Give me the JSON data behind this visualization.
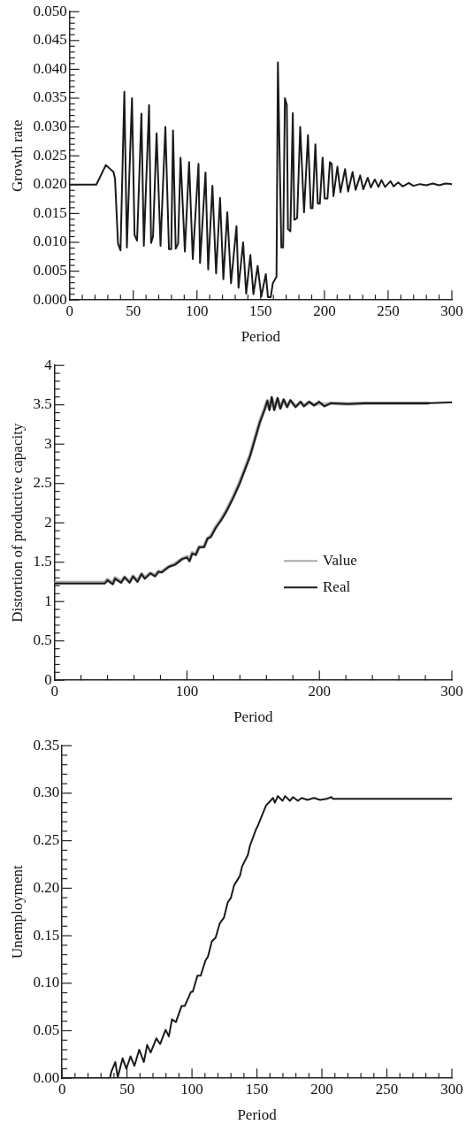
{
  "chart_data": [
    {
      "type": "line",
      "xlabel": "Period",
      "ylabel": "Growth rate",
      "marker": "none",
      "xlim": [
        0,
        300
      ],
      "ylim": [
        0,
        0.05
      ],
      "xticks": [
        0,
        {
          "value": 10,
          "label": null
        },
        {
          "value": 20,
          "label": null
        },
        {
          "value": 30,
          "label": null
        },
        {
          "value": 40,
          "label": null
        },
        50,
        {
          "value": 60,
          "label": null
        },
        {
          "value": 70,
          "label": null
        },
        {
          "value": 80,
          "label": null
        },
        {
          "value": 90,
          "label": null
        },
        100,
        {
          "value": 110,
          "label": null
        },
        {
          "value": 120,
          "label": null
        },
        {
          "value": 130,
          "label": null
        },
        {
          "value": 140,
          "label": null
        },
        150,
        {
          "value": 160,
          "label": null
        },
        {
          "value": 170,
          "label": null
        },
        {
          "value": 180,
          "label": null
        },
        {
          "value": 190,
          "label": null
        },
        200,
        {
          "value": 210,
          "label": null
        },
        {
          "value": 220,
          "label": null
        },
        {
          "value": 230,
          "label": null
        },
        {
          "value": 240,
          "label": null
        },
        250,
        {
          "value": 260,
          "label": null
        },
        {
          "value": 270,
          "label": null
        },
        {
          "value": 280,
          "label": null
        },
        {
          "value": 290,
          "label": null
        },
        300
      ],
      "yticks": [
        {
          "value": 0,
          "label": "0.000"
        },
        {
          "value": 0.001,
          "label": null
        },
        {
          "value": 0.002,
          "label": null
        },
        {
          "value": 0.003,
          "label": null
        },
        {
          "value": 0.004,
          "label": null
        },
        {
          "value": 0.005,
          "label": "0.005"
        },
        {
          "value": 0.006,
          "label": null
        },
        {
          "value": 0.007,
          "label": null
        },
        {
          "value": 0.008,
          "label": null
        },
        {
          "value": 0.009,
          "label": null
        },
        {
          "value": 0.01,
          "label": "0.010"
        },
        {
          "value": 0.011,
          "label": null
        },
        {
          "value": 0.012,
          "label": null
        },
        {
          "value": 0.013,
          "label": null
        },
        {
          "value": 0.014,
          "label": null
        },
        {
          "value": 0.015,
          "label": "0.015"
        },
        {
          "value": 0.016,
          "label": null
        },
        {
          "value": 0.017,
          "label": null
        },
        {
          "value": 0.018,
          "label": null
        },
        {
          "value": 0.019,
          "label": null
        },
        {
          "value": 0.02,
          "label": "0.020"
        },
        {
          "value": 0.021,
          "label": null
        },
        {
          "value": 0.022,
          "label": null
        },
        {
          "value": 0.023,
          "label": null
        },
        {
          "value": 0.024,
          "label": null
        },
        {
          "value": 0.025,
          "label": "0.025"
        },
        {
          "value": 0.026,
          "label": null
        },
        {
          "value": 0.027,
          "label": null
        },
        {
          "value": 0.028,
          "label": null
        },
        {
          "value": 0.029,
          "label": null
        },
        {
          "value": 0.03,
          "label": "0.030"
        },
        {
          "value": 0.031,
          "label": null
        },
        {
          "value": 0.032,
          "label": null
        },
        {
          "value": 0.033,
          "label": null
        },
        {
          "value": 0.034,
          "label": null
        },
        {
          "value": 0.035,
          "label": "0.035"
        },
        {
          "value": 0.036,
          "label": null
        },
        {
          "value": 0.037,
          "label": null
        },
        {
          "value": 0.038,
          "label": null
        },
        {
          "value": 0.039,
          "label": null
        },
        {
          "value": 0.04,
          "label": "0.040"
        },
        {
          "value": 0.041,
          "label": null
        },
        {
          "value": 0.042,
          "label": null
        },
        {
          "value": 0.043,
          "label": null
        },
        {
          "value": 0.044,
          "label": null
        },
        {
          "value": 0.045,
          "label": "0.045"
        },
        {
          "value": 0.046,
          "label": null
        },
        {
          "value": 0.047,
          "label": null
        },
        {
          "value": 0.048,
          "label": null
        },
        {
          "value": 0.049,
          "label": null
        },
        {
          "value": 0.05,
          "label": "0.050"
        }
      ],
      "series": [
        {
          "color": "#1a1a1a",
          "x": [
            0,
            21,
            28.5,
            34.5,
            35.7,
            38,
            40,
            43,
            45,
            49,
            51,
            53,
            56.4,
            58.3,
            62.4,
            64,
            65.5,
            68.3,
            71.4,
            75.2,
            78,
            79.8,
            81.2,
            83.3,
            85.2,
            87.1,
            90.5,
            93.8,
            96.7,
            101.2,
            102.4,
            106.7,
            108.8,
            112.1,
            115,
            118.1,
            120.7,
            123.8,
            126.7,
            131,
            132.6,
            136.2,
            138.6,
            141.9,
            144.3,
            147.6,
            150.5,
            154,
            155.7,
            157.9,
            159.5,
            162.4,
            163.5,
            166.2,
            167.6,
            169,
            170.5,
            171.4,
            173.3,
            175.2,
            176.4,
            178.6,
            181,
            184,
            187.1,
            189.3,
            190.7,
            192.9,
            194.8,
            196.4,
            198.6,
            200.2,
            202.4,
            204.3,
            205.7,
            207.1,
            210.2,
            212.6,
            216.2,
            218.6,
            222.1,
            224.5,
            228.1,
            230.5,
            234,
            236.4,
            239.5,
            242.4,
            244.8,
            247.6,
            251.9,
            254.3,
            257.9,
            261.4,
            266.2,
            269.8,
            275,
            280,
            285,
            290,
            295,
            300
          ],
          "values": [
            0.02,
            0.02,
            0.0234,
            0.0222,
            0.021,
            0.0098,
            0.0086,
            0.0361,
            0.0091,
            0.035,
            0.0113,
            0.0103,
            0.0323,
            0.0094,
            0.0338,
            0.0099,
            0.011,
            0.0289,
            0.0094,
            0.03,
            0.0088,
            0.0088,
            0.0294,
            0.0089,
            0.0098,
            0.0247,
            0.0084,
            0.0239,
            0.0071,
            0.0236,
            0.0064,
            0.0221,
            0.0053,
            0.0198,
            0.0046,
            0.0177,
            0.0036,
            0.0152,
            0.0029,
            0.0128,
            0.0021,
            0.01,
            0.0011,
            0.0078,
            0.001,
            0.0059,
            0.0006,
            0.0045,
            0.0005,
            0.0005,
            0.0029,
            0.004,
            0.0412,
            0.0091,
            0.0091,
            0.035,
            0.0338,
            0.0123,
            0.0119,
            0.0324,
            0.0139,
            0.0142,
            0.03,
            0.0152,
            0.0286,
            0.0159,
            0.0159,
            0.027,
            0.0167,
            0.0167,
            0.0247,
            0.0176,
            0.0176,
            0.0239,
            0.0236,
            0.018,
            0.0231,
            0.0187,
            0.0227,
            0.0188,
            0.0222,
            0.0191,
            0.0216,
            0.0192,
            0.0212,
            0.0195,
            0.0209,
            0.0196,
            0.0208,
            0.0196,
            0.0206,
            0.0197,
            0.0204,
            0.0197,
            0.0203,
            0.0198,
            0.0201,
            0.0199,
            0.0202,
            0.0199,
            0.0202,
            0.0201
          ]
        }
      ]
    },
    {
      "type": "line",
      "xlabel": "Period",
      "ylabel": "Distortion of productive capacity",
      "marker": "none",
      "legend": "bottom right",
      "xlim": [
        0,
        300
      ],
      "ylim": [
        0,
        4
      ],
      "xticks": [
        0,
        {
          "value": 20,
          "label": null
        },
        {
          "value": 40,
          "label": null
        },
        {
          "value": 60,
          "label": null
        },
        {
          "value": 80,
          "label": null
        },
        100,
        {
          "value": 120,
          "label": null
        },
        {
          "value": 140,
          "label": null
        },
        {
          "value": 160,
          "label": null
        },
        {
          "value": 180,
          "label": null
        },
        200,
        {
          "value": 220,
          "label": null
        },
        {
          "value": 240,
          "label": null
        },
        {
          "value": 260,
          "label": null
        },
        {
          "value": 280,
          "label": null
        },
        300
      ],
      "yticks": [
        0,
        {
          "value": 0.1,
          "label": null
        },
        {
          "value": 0.2,
          "label": null
        },
        {
          "value": 0.3,
          "label": null
        },
        {
          "value": 0.4,
          "label": null
        },
        0.5,
        {
          "value": 0.6,
          "label": null
        },
        {
          "value": 0.7,
          "label": null
        },
        {
          "value": 0.8,
          "label": null
        },
        {
          "value": 0.9,
          "label": null
        },
        1,
        {
          "value": 1.1,
          "label": null
        },
        {
          "value": 1.2,
          "label": null
        },
        {
          "value": 1.3,
          "label": null
        },
        {
          "value": 1.4,
          "label": null
        },
        1.5,
        {
          "value": 1.6,
          "label": null
        },
        {
          "value": 1.7,
          "label": null
        },
        {
          "value": 1.8,
          "label": null
        },
        {
          "value": 1.9,
          "label": null
        },
        2,
        {
          "value": 2.1,
          "label": null
        },
        {
          "value": 2.2,
          "label": null
        },
        {
          "value": 2.3,
          "label": null
        },
        {
          "value": 2.4,
          "label": null
        },
        2.5,
        {
          "value": 2.6,
          "label": null
        },
        {
          "value": 2.7,
          "label": null
        },
        {
          "value": 2.8,
          "label": null
        },
        {
          "value": 2.9,
          "label": null
        },
        3,
        {
          "value": 3.1,
          "label": null
        },
        {
          "value": 3.2,
          "label": null
        },
        {
          "value": 3.3,
          "label": null
        },
        {
          "value": 3.4,
          "label": null
        },
        3.5,
        {
          "value": 3.6,
          "label": null
        },
        {
          "value": 3.7,
          "label": null
        },
        {
          "value": 3.8,
          "label": null
        },
        {
          "value": 3.9,
          "label": null
        },
        4
      ],
      "series": [
        {
          "name": "Value",
          "color": "#aaaaaa",
          "x": [
            0,
            38,
            40,
            44,
            45.7,
            50.3,
            52.9,
            56.7,
            59.3,
            62.6,
            65.7,
            68.2,
            72.3,
            75.9,
            78.5,
            81,
            86.1,
            91.2,
            96.3,
            100,
            101.9,
            104,
            106.6,
            109.1,
            112.9,
            115.5,
            118,
            121.9,
            125.7,
            129.6,
            134.7,
            139.8,
            143.6,
            147.5,
            151.3,
            155.1,
            158.9,
            160.7,
            162.3,
            164,
            165.9,
            168.4,
            170.5,
            173,
            175.6,
            178.1,
            182,
            185.8,
            188.3,
            192.2,
            196,
            199.8,
            203.7,
            208.8,
            221.6,
            234.3,
            259.9,
            282
          ],
          "values": [
            1.24,
            1.24,
            1.28,
            1.23,
            1.3,
            1.25,
            1.31,
            1.25,
            1.32,
            1.26,
            1.35,
            1.3,
            1.36,
            1.33,
            1.38,
            1.38,
            1.44,
            1.48,
            1.54,
            1.57,
            1.53,
            1.62,
            1.6,
            1.69,
            1.7,
            1.8,
            1.83,
            1.95,
            2.04,
            2.15,
            2.32,
            2.51,
            2.68,
            2.85,
            3.07,
            3.29,
            3.46,
            3.55,
            3.45,
            3.58,
            3.45,
            3.57,
            3.46,
            3.56,
            3.48,
            3.55,
            3.48,
            3.53,
            3.49,
            3.53,
            3.5,
            3.52,
            3.5,
            3.52,
            3.51,
            3.52,
            3.52,
            3.52
          ]
        },
        {
          "name": "Real",
          "color": "#1a1a1a",
          "x": [
            0,
            38,
            40,
            44,
            45.7,
            50.3,
            52.9,
            56.7,
            59.3,
            62.6,
            65.7,
            68.2,
            72.3,
            75.9,
            78.5,
            81,
            86.1,
            91.2,
            96.3,
            100,
            101.9,
            104,
            106.6,
            109.1,
            112.9,
            115.5,
            118,
            121.9,
            125.7,
            129.6,
            134.7,
            139.8,
            143.6,
            147.5,
            151.3,
            155.1,
            158.9,
            160.7,
            162.3,
            164,
            165.9,
            168.4,
            170.5,
            173,
            175.6,
            178.1,
            182,
            185.8,
            188.3,
            192.2,
            196,
            199.8,
            203.7,
            208.8,
            221.6,
            234.3,
            259.9,
            280.3,
            300
          ],
          "values": [
            1.23,
            1.23,
            1.27,
            1.22,
            1.29,
            1.24,
            1.31,
            1.24,
            1.32,
            1.25,
            1.35,
            1.29,
            1.36,
            1.32,
            1.38,
            1.37,
            1.44,
            1.47,
            1.54,
            1.56,
            1.51,
            1.61,
            1.59,
            1.69,
            1.69,
            1.8,
            1.82,
            1.94,
            2.03,
            2.14,
            2.31,
            2.5,
            2.67,
            2.84,
            3.06,
            3.28,
            3.45,
            3.55,
            3.43,
            3.6,
            3.43,
            3.59,
            3.45,
            3.57,
            3.47,
            3.56,
            3.47,
            3.54,
            3.48,
            3.54,
            3.49,
            3.54,
            3.48,
            3.52,
            3.51,
            3.52,
            3.52,
            3.52,
            3.53
          ]
        }
      ]
    },
    {
      "type": "line",
      "xlabel": "Period",
      "ylabel": "Unemployment",
      "marker": "none",
      "xlim": [
        0,
        300
      ],
      "ylim": [
        0,
        0.35
      ],
      "xticks": [
        0,
        {
          "value": 10,
          "label": null
        },
        {
          "value": 20,
          "label": null
        },
        {
          "value": 30,
          "label": null
        },
        {
          "value": 40,
          "label": null
        },
        50,
        {
          "value": 60,
          "label": null
        },
        {
          "value": 70,
          "label": null
        },
        {
          "value": 80,
          "label": null
        },
        {
          "value": 90,
          "label": null
        },
        100,
        {
          "value": 110,
          "label": null
        },
        {
          "value": 120,
          "label": null
        },
        {
          "value": 130,
          "label": null
        },
        {
          "value": 140,
          "label": null
        },
        150,
        {
          "value": 160,
          "label": null
        },
        {
          "value": 170,
          "label": null
        },
        {
          "value": 180,
          "label": null
        },
        {
          "value": 190,
          "label": null
        },
        200,
        {
          "value": 210,
          "label": null
        },
        {
          "value": 220,
          "label": null
        },
        {
          "value": 230,
          "label": null
        },
        {
          "value": 240,
          "label": null
        },
        250,
        {
          "value": 260,
          "label": null
        },
        {
          "value": 270,
          "label": null
        },
        {
          "value": 280,
          "label": null
        },
        {
          "value": 290,
          "label": null
        },
        300
      ],
      "yticks": [
        {
          "value": 0,
          "label": "0.00"
        },
        {
          "value": 0.01,
          "label": null
        },
        {
          "value": 0.02,
          "label": null
        },
        {
          "value": 0.03,
          "label": null
        },
        {
          "value": 0.04,
          "label": null
        },
        {
          "value": 0.05,
          "label": "0.05"
        },
        {
          "value": 0.06,
          "label": null
        },
        {
          "value": 0.07,
          "label": null
        },
        {
          "value": 0.08,
          "label": null
        },
        {
          "value": 0.09,
          "label": null
        },
        {
          "value": 0.1,
          "label": "0.10"
        },
        {
          "value": 0.11,
          "label": null
        },
        {
          "value": 0.12,
          "label": null
        },
        {
          "value": 0.13,
          "label": null
        },
        {
          "value": 0.14,
          "label": null
        },
        {
          "value": 0.15,
          "label": "0.15"
        },
        {
          "value": 0.16,
          "label": null
        },
        {
          "value": 0.17,
          "label": null
        },
        {
          "value": 0.18,
          "label": null
        },
        {
          "value": 0.19,
          "label": null
        },
        {
          "value": 0.2,
          "label": "0.20"
        },
        {
          "value": 0.21,
          "label": null
        },
        {
          "value": 0.22,
          "label": null
        },
        {
          "value": 0.23,
          "label": null
        },
        {
          "value": 0.24,
          "label": null
        },
        {
          "value": 0.25,
          "label": "0.25"
        },
        {
          "value": 0.26,
          "label": null
        },
        {
          "value": 0.27,
          "label": null
        },
        {
          "value": 0.28,
          "label": null
        },
        {
          "value": 0.29,
          "label": null
        },
        {
          "value": 0.3,
          "label": "0.30"
        },
        {
          "value": 0.31,
          "label": null
        },
        {
          "value": 0.32,
          "label": null
        },
        {
          "value": 0.33,
          "label": null
        },
        {
          "value": 0.34,
          "label": null
        },
        {
          "value": 0.35,
          "label": "0.35"
        }
      ],
      "series": [
        {
          "color": "#1a1a1a",
          "x": [
            0,
            36.8,
            38,
            41,
            42.9,
            46.6,
            49.5,
            52.7,
            55.7,
            59.4,
            63,
            65.5,
            68.2,
            72.6,
            75.5,
            79.7,
            82.2,
            84.6,
            87.6,
            92,
            94.4,
            99.3,
            100.6,
            104.2,
            106.7,
            110.4,
            112.3,
            115.3,
            118.2,
            121.4,
            124.6,
            127.5,
            130,
            132.4,
            136.9,
            138.6,
            143,
            144.7,
            149.6,
            150.8,
            155.8,
            157,
            162.4,
            163.8,
            166.1,
            169.7,
            171.7,
            175.4,
            177.8,
            181.5,
            184.4,
            188.9,
            193.8,
            198.7,
            203.6,
            207.3,
            208.5,
            300
          ],
          "values": [
            0,
            0,
            0.007,
            0.017,
            0.001,
            0.021,
            0.01,
            0.023,
            0.013,
            0.03,
            0.017,
            0.035,
            0.027,
            0.042,
            0.036,
            0.051,
            0.044,
            0.062,
            0.059,
            0.076,
            0.076,
            0.091,
            0.091,
            0.108,
            0.108,
            0.124,
            0.128,
            0.144,
            0.148,
            0.163,
            0.169,
            0.185,
            0.19,
            0.203,
            0.213,
            0.223,
            0.235,
            0.245,
            0.263,
            0.266,
            0.283,
            0.287,
            0.295,
            0.29,
            0.297,
            0.292,
            0.297,
            0.292,
            0.296,
            0.292,
            0.295,
            0.293,
            0.295,
            0.293,
            0.294,
            0.296,
            0.294,
            0.294
          ]
        }
      ]
    }
  ]
}
